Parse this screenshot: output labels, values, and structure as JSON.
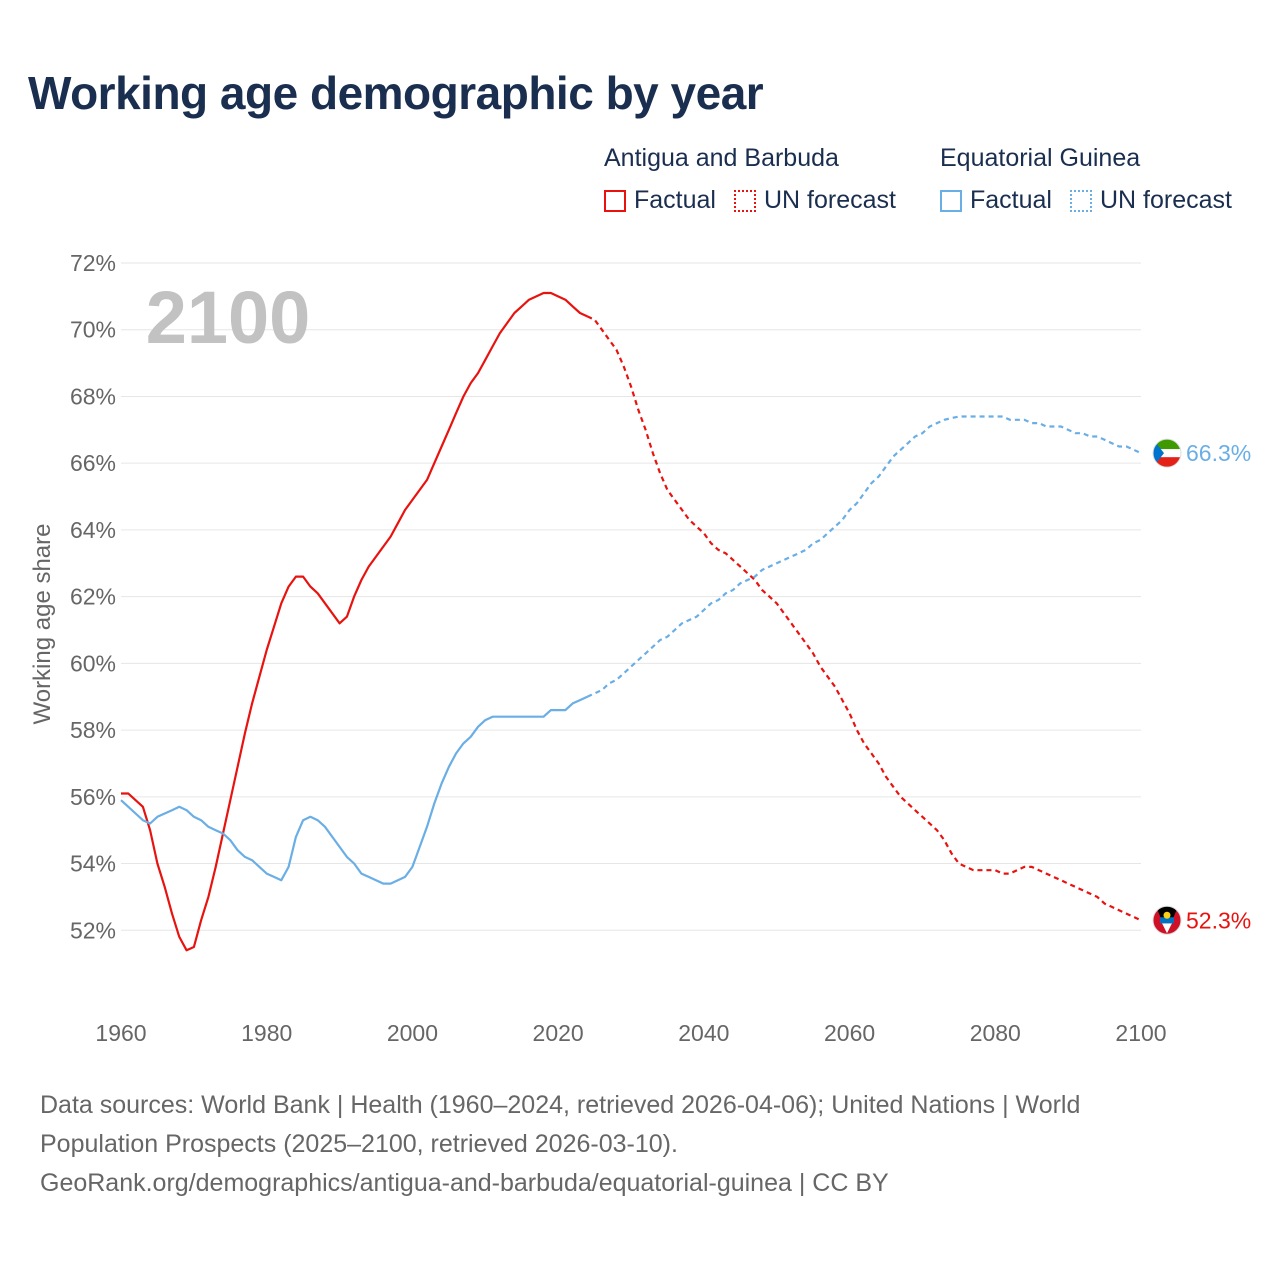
{
  "title": "Working age demographic by year",
  "year_label": "2100",
  "legend": {
    "groups": [
      {
        "name": "Antigua and Barbuda",
        "color": "#e8130f",
        "factual_label": "Factual",
        "forecast_label": "UN forecast"
      },
      {
        "name": "Equatorial Guinea",
        "color": "#6aaee6",
        "factual_label": "Factual",
        "forecast_label": "UN forecast"
      }
    ]
  },
  "sources": {
    "line1": "Data sources: World Bank | Health (1960–2024, retrieved 2026-04-06); United Nations | World",
    "line2": "Population Prospects (2025–2100, retrieved 2026-03-10).",
    "line3": "GeoRank.org/demographics/antigua-and-barbuda/equatorial-guinea | CC BY"
  },
  "chart_data": {
    "type": "line",
    "title": "Working age demographic by year",
    "xlabel": "",
    "ylabel": "Working age share",
    "xlim": [
      1960,
      2100
    ],
    "ylim": [
      50,
      72
    ],
    "x_ticks": [
      1960,
      1980,
      2000,
      2020,
      2040,
      2060,
      2080,
      2100
    ],
    "y_ticks": [
      52,
      54,
      56,
      58,
      60,
      62,
      64,
      66,
      68,
      70,
      72
    ],
    "y_tick_labels": [
      "52%",
      "54%",
      "56%",
      "58%",
      "60%",
      "62%",
      "64%",
      "66%",
      "68%",
      "70%",
      "72%"
    ],
    "x_tick_labels": [
      "1960",
      "1980",
      "2000",
      "2020",
      "2040",
      "2060",
      "2080",
      "2100"
    ],
    "forecast_start_year": 2024,
    "series": [
      {
        "name": "Antigua and Barbuda",
        "color": "#e8130f",
        "end_label": "52.3%",
        "points": [
          [
            1960,
            56.1
          ],
          [
            1961,
            56.1
          ],
          [
            1962,
            55.9
          ],
          [
            1963,
            55.7
          ],
          [
            1964,
            55.0
          ],
          [
            1965,
            54.0
          ],
          [
            1966,
            53.3
          ],
          [
            1967,
            52.5
          ],
          [
            1968,
            51.8
          ],
          [
            1969,
            51.4
          ],
          [
            1970,
            51.5
          ],
          [
            1971,
            52.3
          ],
          [
            1972,
            53.0
          ],
          [
            1973,
            53.9
          ],
          [
            1974,
            54.9
          ],
          [
            1975,
            55.9
          ],
          [
            1976,
            56.9
          ],
          [
            1977,
            57.9
          ],
          [
            1978,
            58.8
          ],
          [
            1979,
            59.6
          ],
          [
            1980,
            60.4
          ],
          [
            1981,
            61.1
          ],
          [
            1982,
            61.8
          ],
          [
            1983,
            62.3
          ],
          [
            1984,
            62.6
          ],
          [
            1985,
            62.6
          ],
          [
            1986,
            62.3
          ],
          [
            1987,
            62.1
          ],
          [
            1988,
            61.8
          ],
          [
            1989,
            61.5
          ],
          [
            1990,
            61.2
          ],
          [
            1991,
            61.4
          ],
          [
            1992,
            62.0
          ],
          [
            1993,
            62.5
          ],
          [
            1994,
            62.9
          ],
          [
            1995,
            63.2
          ],
          [
            1996,
            63.5
          ],
          [
            1997,
            63.8
          ],
          [
            1998,
            64.2
          ],
          [
            1999,
            64.6
          ],
          [
            2000,
            64.9
          ],
          [
            2001,
            65.2
          ],
          [
            2002,
            65.5
          ],
          [
            2003,
            66.0
          ],
          [
            2004,
            66.5
          ],
          [
            2005,
            67.0
          ],
          [
            2006,
            67.5
          ],
          [
            2007,
            68.0
          ],
          [
            2008,
            68.4
          ],
          [
            2009,
            68.7
          ],
          [
            2010,
            69.1
          ],
          [
            2011,
            69.5
          ],
          [
            2012,
            69.9
          ],
          [
            2013,
            70.2
          ],
          [
            2014,
            70.5
          ],
          [
            2015,
            70.7
          ],
          [
            2016,
            70.9
          ],
          [
            2017,
            71.0
          ],
          [
            2018,
            71.1
          ],
          [
            2019,
            71.1
          ],
          [
            2020,
            71.0
          ],
          [
            2021,
            70.9
          ],
          [
            2022,
            70.7
          ],
          [
            2023,
            70.5
          ],
          [
            2024,
            70.4
          ],
          [
            2025,
            70.3
          ],
          [
            2026,
            70.0
          ],
          [
            2027,
            69.7
          ],
          [
            2028,
            69.4
          ],
          [
            2029,
            68.9
          ],
          [
            2030,
            68.3
          ],
          [
            2031,
            67.6
          ],
          [
            2032,
            67.0
          ],
          [
            2033,
            66.3
          ],
          [
            2034,
            65.7
          ],
          [
            2035,
            65.2
          ],
          [
            2036,
            64.9
          ],
          [
            2037,
            64.6
          ],
          [
            2038,
            64.3
          ],
          [
            2039,
            64.1
          ],
          [
            2040,
            63.9
          ],
          [
            2041,
            63.6
          ],
          [
            2042,
            63.4
          ],
          [
            2043,
            63.3
          ],
          [
            2044,
            63.1
          ],
          [
            2045,
            62.9
          ],
          [
            2046,
            62.7
          ],
          [
            2047,
            62.5
          ],
          [
            2048,
            62.2
          ],
          [
            2049,
            62.0
          ],
          [
            2050,
            61.8
          ],
          [
            2051,
            61.5
          ],
          [
            2052,
            61.2
          ],
          [
            2053,
            60.9
          ],
          [
            2054,
            60.6
          ],
          [
            2055,
            60.3
          ],
          [
            2056,
            59.9
          ],
          [
            2057,
            59.6
          ],
          [
            2058,
            59.3
          ],
          [
            2059,
            58.9
          ],
          [
            2060,
            58.5
          ],
          [
            2061,
            58.0
          ],
          [
            2062,
            57.6
          ],
          [
            2063,
            57.3
          ],
          [
            2064,
            57.0
          ],
          [
            2065,
            56.6
          ],
          [
            2066,
            56.3
          ],
          [
            2067,
            56.0
          ],
          [
            2068,
            55.8
          ],
          [
            2069,
            55.6
          ],
          [
            2070,
            55.4
          ],
          [
            2071,
            55.2
          ],
          [
            2072,
            55.0
          ],
          [
            2073,
            54.7
          ],
          [
            2074,
            54.3
          ],
          [
            2075,
            54.0
          ],
          [
            2076,
            53.9
          ],
          [
            2077,
            53.8
          ],
          [
            2078,
            53.8
          ],
          [
            2079,
            53.8
          ],
          [
            2080,
            53.8
          ],
          [
            2081,
            53.7
          ],
          [
            2082,
            53.7
          ],
          [
            2083,
            53.8
          ],
          [
            2084,
            53.9
          ],
          [
            2085,
            53.9
          ],
          [
            2086,
            53.8
          ],
          [
            2087,
            53.7
          ],
          [
            2088,
            53.6
          ],
          [
            2089,
            53.5
          ],
          [
            2090,
            53.4
          ],
          [
            2091,
            53.3
          ],
          [
            2092,
            53.2
          ],
          [
            2093,
            53.1
          ],
          [
            2094,
            53.0
          ],
          [
            2095,
            52.8
          ],
          [
            2096,
            52.7
          ],
          [
            2097,
            52.6
          ],
          [
            2098,
            52.5
          ],
          [
            2099,
            52.4
          ],
          [
            2100,
            52.3
          ]
        ]
      },
      {
        "name": "Equatorial Guinea",
        "color": "#6aaee6",
        "end_label": "66.3%",
        "points": [
          [
            1960,
            55.9
          ],
          [
            1961,
            55.7
          ],
          [
            1962,
            55.5
          ],
          [
            1963,
            55.3
          ],
          [
            1964,
            55.2
          ],
          [
            1965,
            55.4
          ],
          [
            1966,
            55.5
          ],
          [
            1967,
            55.6
          ],
          [
            1968,
            55.7
          ],
          [
            1969,
            55.6
          ],
          [
            1970,
            55.4
          ],
          [
            1971,
            55.3
          ],
          [
            1972,
            55.1
          ],
          [
            1973,
            55.0
          ],
          [
            1974,
            54.9
          ],
          [
            1975,
            54.7
          ],
          [
            1976,
            54.4
          ],
          [
            1977,
            54.2
          ],
          [
            1978,
            54.1
          ],
          [
            1979,
            53.9
          ],
          [
            1980,
            53.7
          ],
          [
            1981,
            53.6
          ],
          [
            1982,
            53.5
          ],
          [
            1983,
            53.9
          ],
          [
            1984,
            54.8
          ],
          [
            1985,
            55.3
          ],
          [
            1986,
            55.4
          ],
          [
            1987,
            55.3
          ],
          [
            1988,
            55.1
          ],
          [
            1989,
            54.8
          ],
          [
            1990,
            54.5
          ],
          [
            1991,
            54.2
          ],
          [
            1992,
            54.0
          ],
          [
            1993,
            53.7
          ],
          [
            1994,
            53.6
          ],
          [
            1995,
            53.5
          ],
          [
            1996,
            53.4
          ],
          [
            1997,
            53.4
          ],
          [
            1998,
            53.5
          ],
          [
            1999,
            53.6
          ],
          [
            2000,
            53.9
          ],
          [
            2001,
            54.5
          ],
          [
            2002,
            55.1
          ],
          [
            2003,
            55.8
          ],
          [
            2004,
            56.4
          ],
          [
            2005,
            56.9
          ],
          [
            2006,
            57.3
          ],
          [
            2007,
            57.6
          ],
          [
            2008,
            57.8
          ],
          [
            2009,
            58.1
          ],
          [
            2010,
            58.3
          ],
          [
            2011,
            58.4
          ],
          [
            2012,
            58.4
          ],
          [
            2013,
            58.4
          ],
          [
            2014,
            58.4
          ],
          [
            2015,
            58.4
          ],
          [
            2016,
            58.4
          ],
          [
            2017,
            58.4
          ],
          [
            2018,
            58.4
          ],
          [
            2019,
            58.6
          ],
          [
            2020,
            58.6
          ],
          [
            2021,
            58.6
          ],
          [
            2022,
            58.8
          ],
          [
            2023,
            58.9
          ],
          [
            2024,
            59.0
          ],
          [
            2025,
            59.1
          ],
          [
            2026,
            59.2
          ],
          [
            2027,
            59.4
          ],
          [
            2028,
            59.5
          ],
          [
            2029,
            59.7
          ],
          [
            2030,
            59.9
          ],
          [
            2031,
            60.1
          ],
          [
            2032,
            60.3
          ],
          [
            2033,
            60.5
          ],
          [
            2034,
            60.7
          ],
          [
            2035,
            60.8
          ],
          [
            2036,
            61.0
          ],
          [
            2037,
            61.2
          ],
          [
            2038,
            61.3
          ],
          [
            2039,
            61.4
          ],
          [
            2040,
            61.6
          ],
          [
            2041,
            61.8
          ],
          [
            2042,
            61.9
          ],
          [
            2043,
            62.1
          ],
          [
            2044,
            62.2
          ],
          [
            2045,
            62.4
          ],
          [
            2046,
            62.5
          ],
          [
            2047,
            62.6
          ],
          [
            2048,
            62.8
          ],
          [
            2049,
            62.9
          ],
          [
            2050,
            63.0
          ],
          [
            2051,
            63.1
          ],
          [
            2052,
            63.2
          ],
          [
            2053,
            63.3
          ],
          [
            2054,
            63.4
          ],
          [
            2055,
            63.6
          ],
          [
            2056,
            63.7
          ],
          [
            2057,
            63.9
          ],
          [
            2058,
            64.1
          ],
          [
            2059,
            64.3
          ],
          [
            2060,
            64.6
          ],
          [
            2061,
            64.8
          ],
          [
            2062,
            65.1
          ],
          [
            2063,
            65.4
          ],
          [
            2064,
            65.6
          ],
          [
            2065,
            65.9
          ],
          [
            2066,
            66.2
          ],
          [
            2067,
            66.4
          ],
          [
            2068,
            66.6
          ],
          [
            2069,
            66.8
          ],
          [
            2070,
            66.9
          ],
          [
            2071,
            67.1
          ],
          [
            2072,
            67.2
          ],
          [
            2073,
            67.3
          ],
          [
            2074,
            67.35
          ],
          [
            2075,
            67.4
          ],
          [
            2076,
            67.4
          ],
          [
            2077,
            67.4
          ],
          [
            2078,
            67.4
          ],
          [
            2079,
            67.4
          ],
          [
            2080,
            67.4
          ],
          [
            2081,
            67.4
          ],
          [
            2082,
            67.3
          ],
          [
            2083,
            67.3
          ],
          [
            2084,
            67.3
          ],
          [
            2085,
            67.2
          ],
          [
            2086,
            67.2
          ],
          [
            2087,
            67.1
          ],
          [
            2088,
            67.1
          ],
          [
            2089,
            67.1
          ],
          [
            2090,
            67.0
          ],
          [
            2091,
            66.9
          ],
          [
            2092,
            66.9
          ],
          [
            2093,
            66.8
          ],
          [
            2094,
            66.8
          ],
          [
            2095,
            66.7
          ],
          [
            2096,
            66.6
          ],
          [
            2097,
            66.5
          ],
          [
            2098,
            66.5
          ],
          [
            2099,
            66.4
          ],
          [
            2100,
            66.3
          ]
        ]
      }
    ]
  }
}
